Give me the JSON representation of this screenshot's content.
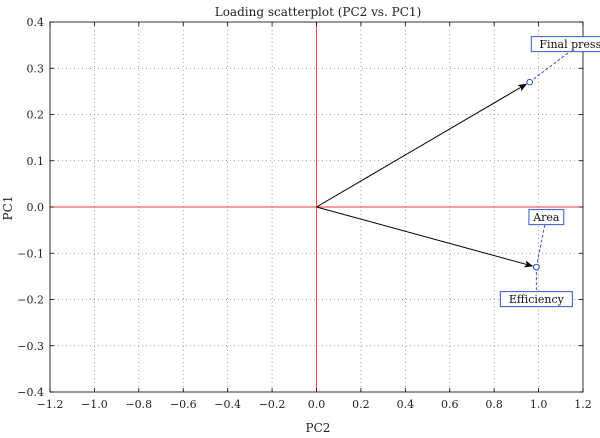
{
  "chart_data": {
    "type": "scatter",
    "title": "Loading scatterplot (PC2 vs. PC1)",
    "xlabel": "PC2",
    "ylabel": "PC1",
    "xlim": [
      -1.2,
      1.2
    ],
    "ylim": [
      -0.4,
      0.4
    ],
    "xticks": [
      -1.2,
      -1.0,
      -0.8,
      -0.6,
      -0.4,
      -0.2,
      0.0,
      0.2,
      0.4,
      0.6,
      0.8,
      1.0,
      1.2
    ],
    "xtick_labels": [
      "−1.2",
      "−1.0",
      "−0.8",
      "−0.6",
      "−0.4",
      "−0.2",
      "0.0",
      "0.2",
      "0.4",
      "0.6",
      "0.8",
      "1.0",
      "1.2"
    ],
    "yticks": [
      -0.4,
      -0.3,
      -0.2,
      -0.1,
      0.0,
      0.1,
      0.2,
      0.3,
      0.4
    ],
    "ytick_labels": [
      "−0.4",
      "−0.3",
      "−0.2",
      "−0.1",
      "0.0",
      "0.1",
      "0.2",
      "0.3",
      "0.4"
    ],
    "grid": true,
    "points": [
      {
        "label": "Final pressure",
        "x": 0.96,
        "y": 0.27
      },
      {
        "label": "Area",
        "x": 0.99,
        "y": -0.13
      },
      {
        "label": "Efficiency",
        "x": 0.99,
        "y": -0.13
      }
    ],
    "colors": {
      "axis_lines": "#ff3b3b",
      "arrows": "#000000",
      "points": "#3355cc",
      "grid": "#888888"
    }
  }
}
